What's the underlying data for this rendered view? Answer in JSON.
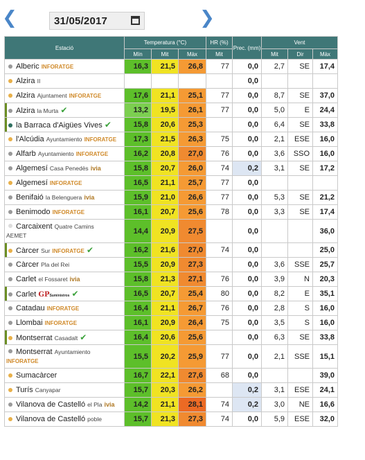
{
  "date_value": "31/05/2017",
  "header": {
    "station": "Estació",
    "temp": "Temperatura (°C)",
    "hr": "HR (%)",
    "prec": "Prec. (mm)",
    "vent": "Vent",
    "min": "Mín",
    "mit": "Mit",
    "max": "Màx",
    "hr_mit": "Mit",
    "vent_mit": "Mit",
    "vent_dir": "Dir",
    "vent_max": "Màx"
  },
  "stations": [
    {
      "name": "Alberic",
      "sub": "",
      "brand": "INFORATGE",
      "ivia": "",
      "gp": "",
      "check": false,
      "dot": "#999999",
      "min": "16,3",
      "mit": "21,5",
      "max": "26,8",
      "hr": "77",
      "prec": "0,0",
      "vmit": "2,7",
      "dir": "SE",
      "vmax": "17,4",
      "cmin": "#5dbf2a",
      "cmit": "#f0e322",
      "cmax": "#f59a34",
      "tall": false,
      "bar": false,
      "prec_hi": false
    },
    {
      "name": "Alzira",
      "sub": "II",
      "brand": "",
      "ivia": "",
      "gp": "",
      "check": false,
      "dot": "#e8b04a",
      "min": "",
      "mit": "",
      "max": "",
      "hr": "",
      "prec": "0,0",
      "vmit": "",
      "dir": "",
      "vmax": "",
      "cmin": "#ffffff",
      "cmit": "#ffffff",
      "cmax": "#ffffff",
      "tall": false,
      "bar": false,
      "prec_hi": false
    },
    {
      "name": "Alzira",
      "sub": "Ajuntament",
      "brand": "INFORATGE",
      "ivia": "",
      "gp": "",
      "check": false,
      "dot": "#e8b04a",
      "min": "17,6",
      "mit": "21,1",
      "max": "25,1",
      "hr": "77",
      "prec": "0,0",
      "vmit": "8,7",
      "dir": "SE",
      "vmax": "37,0",
      "cmin": "#5dbf2a",
      "cmit": "#f0e322",
      "cmax": "#f59a34",
      "tall": false,
      "bar": false,
      "prec_hi": false
    },
    {
      "name": "Alzira",
      "sub": "la Murta",
      "brand": "",
      "ivia": "",
      "gp": "",
      "check": true,
      "dot": "#999999",
      "min": "13,2",
      "mit": "19,5",
      "max": "26,1",
      "hr": "77",
      "prec": "0,0",
      "vmit": "5,0",
      "dir": "E",
      "vmax": "24,4",
      "cmin": "#7ccf50",
      "cmit": "#f0e322",
      "cmax": "#f59a34",
      "tall": false,
      "bar": true,
      "prec_hi": false
    },
    {
      "name": "la Barraca d'Aigües Vives",
      "sub": "",
      "brand": "",
      "ivia": "",
      "gp": "",
      "check": true,
      "dot": "#2f6f5f",
      "min": "15,8",
      "mit": "20,6",
      "max": "25,3",
      "hr": "",
      "prec": "0,0",
      "vmit": "6,4",
      "dir": "SE",
      "vmax": "33,8",
      "cmin": "#5dbf2a",
      "cmit": "#f0e322",
      "cmax": "#f59a34",
      "tall": false,
      "bar": true,
      "prec_hi": false
    },
    {
      "name": "l'Alcúdia",
      "sub": "Ayuntamiento",
      "brand": "INFORATGE",
      "ivia": "",
      "gp": "",
      "check": false,
      "dot": "#e8b04a",
      "min": "17,3",
      "mit": "21,5",
      "max": "26,3",
      "hr": "75",
      "prec": "0,0",
      "vmit": "2,1",
      "dir": "ESE",
      "vmax": "16,0",
      "cmin": "#5dbf2a",
      "cmit": "#f0e322",
      "cmax": "#f59a34",
      "tall": false,
      "bar": false,
      "prec_hi": false
    },
    {
      "name": "Alfarb",
      "sub": "Ayuntamiento",
      "brand": "INFORATGE",
      "ivia": "",
      "gp": "",
      "check": false,
      "dot": "#999999",
      "min": "16,2",
      "mit": "20,8",
      "max": "27,0",
      "hr": "76",
      "prec": "0,0",
      "vmit": "3,6",
      "dir": "SSO",
      "vmax": "16,0",
      "cmin": "#5dbf2a",
      "cmit": "#f0e322",
      "cmax": "#f08a30",
      "tall": false,
      "bar": false,
      "prec_hi": false
    },
    {
      "name": "Algemesí",
      "sub": "Casa Penedès",
      "brand": "",
      "ivia": "ivia",
      "gp": "",
      "check": false,
      "dot": "#999999",
      "min": "15,8",
      "mit": "20,7",
      "max": "26,0",
      "hr": "74",
      "prec": "0,2",
      "vmit": "3,1",
      "dir": "SE",
      "vmax": "17,2",
      "cmin": "#5dbf2a",
      "cmit": "#f0e322",
      "cmax": "#f59a34",
      "tall": false,
      "bar": false,
      "prec_hi": true
    },
    {
      "name": "Algemesí",
      "sub": "",
      "brand": "INFORATGE",
      "ivia": "",
      "gp": "",
      "check": false,
      "dot": "#e8b04a",
      "min": "16,5",
      "mit": "21,1",
      "max": "25,7",
      "hr": "77",
      "prec": "0,0",
      "vmit": "",
      "dir": "",
      "vmax": "",
      "cmin": "#5dbf2a",
      "cmit": "#f0e322",
      "cmax": "#f59a34",
      "tall": false,
      "bar": false,
      "prec_hi": false
    },
    {
      "name": "Benifaió",
      "sub": "la Belenguera",
      "brand": "",
      "ivia": "ivia",
      "gp": "",
      "check": false,
      "dot": "#999999",
      "min": "15,9",
      "mit": "21,0",
      "max": "26,6",
      "hr": "77",
      "prec": "0,0",
      "vmit": "5,3",
      "dir": "SE",
      "vmax": "21,2",
      "cmin": "#5dbf2a",
      "cmit": "#f0e322",
      "cmax": "#f59a34",
      "tall": false,
      "bar": false,
      "prec_hi": false
    },
    {
      "name": "Benimodo",
      "sub": "",
      "brand": "INFORATGE",
      "ivia": "",
      "gp": "",
      "check": false,
      "dot": "#999999",
      "min": "16,1",
      "mit": "20,7",
      "max": "25,6",
      "hr": "78",
      "prec": "0,0",
      "vmit": "3,3",
      "dir": "SE",
      "vmax": "17,4",
      "cmin": "#5dbf2a",
      "cmit": "#f0e322",
      "cmax": "#f59a34",
      "tall": false,
      "bar": false,
      "prec_hi": false
    },
    {
      "name": "Carcaixent",
      "sub": "Quatre Camins",
      "sub2": "AEMET",
      "brand": "",
      "ivia": "",
      "gp": "",
      "check": false,
      "dot": "#dddddd",
      "min": "14,4",
      "mit": "20,9",
      "max": "27,5",
      "hr": "",
      "prec": "0,0",
      "vmit": "",
      "dir": "",
      "vmax": "36,0",
      "cmin": "#5dbf2a",
      "cmit": "#f0e322",
      "cmax": "#f08a30",
      "tall": true,
      "bar": false,
      "prec_hi": false
    },
    {
      "name": "Càrcer",
      "sub": "Sur",
      "brand": "INFORATGE",
      "ivia": "",
      "gp": "",
      "check": true,
      "dot": "#e8b04a",
      "min": "16,2",
      "mit": "21,6",
      "max": "27,0",
      "hr": "74",
      "prec": "0,0",
      "vmit": "",
      "dir": "",
      "vmax": "25,0",
      "cmin": "#5dbf2a",
      "cmit": "#f0e322",
      "cmax": "#f08a30",
      "tall": false,
      "bar": true,
      "prec_hi": false
    },
    {
      "name": "Càrcer",
      "sub": "Pla del Rei",
      "brand": "",
      "ivia": "",
      "gp": "",
      "check": false,
      "dot": "#999999",
      "min": "15,5",
      "mit": "20,9",
      "max": "27,3",
      "hr": "",
      "prec": "0,0",
      "vmit": "3,6",
      "dir": "SSE",
      "vmax": "25,7",
      "cmin": "#5dbf2a",
      "cmit": "#f0e322",
      "cmax": "#f08a30",
      "tall": false,
      "bar": false,
      "prec_hi": false
    },
    {
      "name": "Carlet",
      "sub": "el Fossaret",
      "brand": "",
      "ivia": "ivia",
      "gp": "",
      "check": false,
      "dot": "#999999",
      "min": "15,8",
      "mit": "21,3",
      "max": "27,1",
      "hr": "76",
      "prec": "0,0",
      "vmit": "3,9",
      "dir": "N",
      "vmax": "20,3",
      "cmin": "#5dbf2a",
      "cmit": "#f0e322",
      "cmax": "#f08a30",
      "tall": false,
      "bar": false,
      "prec_hi": false
    },
    {
      "name": "Carlet",
      "sub": "",
      "brand": "",
      "ivia": "",
      "gp": "GP",
      "gpsub": "Suministros",
      "check": true,
      "dot": "#999999",
      "min": "16,5",
      "mit": "20,7",
      "max": "25,4",
      "hr": "80",
      "prec": "0,0",
      "vmit": "8,2",
      "dir": "E",
      "vmax": "35,1",
      "cmin": "#5dbf2a",
      "cmit": "#f0e322",
      "cmax": "#f59a34",
      "tall": false,
      "bar": true,
      "prec_hi": false
    },
    {
      "name": "Catadau",
      "sub": "",
      "brand": "INFORATGE",
      "ivia": "",
      "gp": "",
      "check": false,
      "dot": "#999999",
      "min": "16,4",
      "mit": "21,1",
      "max": "26,7",
      "hr": "76",
      "prec": "0,0",
      "vmit": "2,8",
      "dir": "S",
      "vmax": "16,0",
      "cmin": "#5dbf2a",
      "cmit": "#f0e322",
      "cmax": "#f59a34",
      "tall": false,
      "bar": false,
      "prec_hi": false
    },
    {
      "name": "Llombai",
      "sub": "",
      "brand": "INFORATGE",
      "ivia": "",
      "gp": "",
      "check": false,
      "dot": "#999999",
      "min": "16,1",
      "mit": "20,9",
      "max": "26,4",
      "hr": "75",
      "prec": "0,0",
      "vmit": "3,5",
      "dir": "S",
      "vmax": "16,0",
      "cmin": "#5dbf2a",
      "cmit": "#f0e322",
      "cmax": "#f59a34",
      "tall": false,
      "bar": false,
      "prec_hi": false
    },
    {
      "name": "Montserrat",
      "sub": "Casadalt",
      "brand": "",
      "ivia": "",
      "gp": "",
      "check": true,
      "dot": "#e8b04a",
      "min": "16,4",
      "mit": "20,6",
      "max": "25,6",
      "hr": "",
      "prec": "0,0",
      "vmit": "6,3",
      "dir": "SE",
      "vmax": "33,8",
      "cmin": "#5dbf2a",
      "cmit": "#f0e322",
      "cmax": "#f59a34",
      "tall": false,
      "bar": true,
      "prec_hi": false
    },
    {
      "name": "Montserrat",
      "sub": "Ayuntamiento",
      "sub2": "INFORATGE",
      "brand": "",
      "ivia": "",
      "gp": "",
      "check": false,
      "dot": "#999999",
      "min": "15,5",
      "mit": "20,2",
      "max": "25,9",
      "hr": "77",
      "prec": "0,0",
      "vmit": "2,1",
      "dir": "SSE",
      "vmax": "15,1",
      "cmin": "#5dbf2a",
      "cmit": "#f0e322",
      "cmax": "#f59a34",
      "tall": true,
      "bar": false,
      "prec_hi": false
    },
    {
      "name": "Sumacàrcer",
      "sub": "",
      "brand": "",
      "ivia": "",
      "gp": "",
      "check": false,
      "dot": "#e8b04a",
      "min": "16,7",
      "mit": "22,1",
      "max": "27,6",
      "hr": "68",
      "prec": "0,0",
      "vmit": "",
      "dir": "",
      "vmax": "39,0",
      "cmin": "#5dbf2a",
      "cmit": "#f0e322",
      "cmax": "#f08a30",
      "tall": false,
      "bar": false,
      "prec_hi": false
    },
    {
      "name": "Turís",
      "sub": "Canyapar",
      "brand": "",
      "ivia": "",
      "gp": "",
      "check": false,
      "dot": "#e8b04a",
      "min": "15,7",
      "mit": "20,3",
      "max": "26,2",
      "hr": "",
      "prec": "0,2",
      "vmit": "3,1",
      "dir": "ESE",
      "vmax": "24,1",
      "cmin": "#5dbf2a",
      "cmit": "#f0e322",
      "cmax": "#f59a34",
      "tall": false,
      "bar": false,
      "prec_hi": true
    },
    {
      "name": "Vilanova de Castelló",
      "sub": "el Pla",
      "brand": "",
      "ivia": "ivia",
      "gp": "",
      "check": false,
      "dot": "#999999",
      "min": "14,2",
      "mit": "21,1",
      "max": "28,1",
      "hr": "74",
      "prec": "0,2",
      "vmit": "3,0",
      "dir": "NE",
      "vmax": "16,6",
      "cmin": "#5dbf2a",
      "cmit": "#f0e322",
      "cmax": "#ec6a24",
      "tall": false,
      "bar": false,
      "prec_hi": true
    },
    {
      "name": "Vilanova de Castelló",
      "sub": "poble",
      "brand": "",
      "ivia": "",
      "gp": "",
      "check": false,
      "dot": "#e8b04a",
      "min": "15,7",
      "mit": "21,3",
      "max": "27,3",
      "hr": "74",
      "prec": "0,0",
      "vmit": "5,9",
      "dir": "ESE",
      "vmax": "32,0",
      "cmin": "#5dbf2a",
      "cmit": "#f0e322",
      "cmax": "#f08a30",
      "tall": false,
      "bar": false,
      "prec_hi": false
    }
  ]
}
